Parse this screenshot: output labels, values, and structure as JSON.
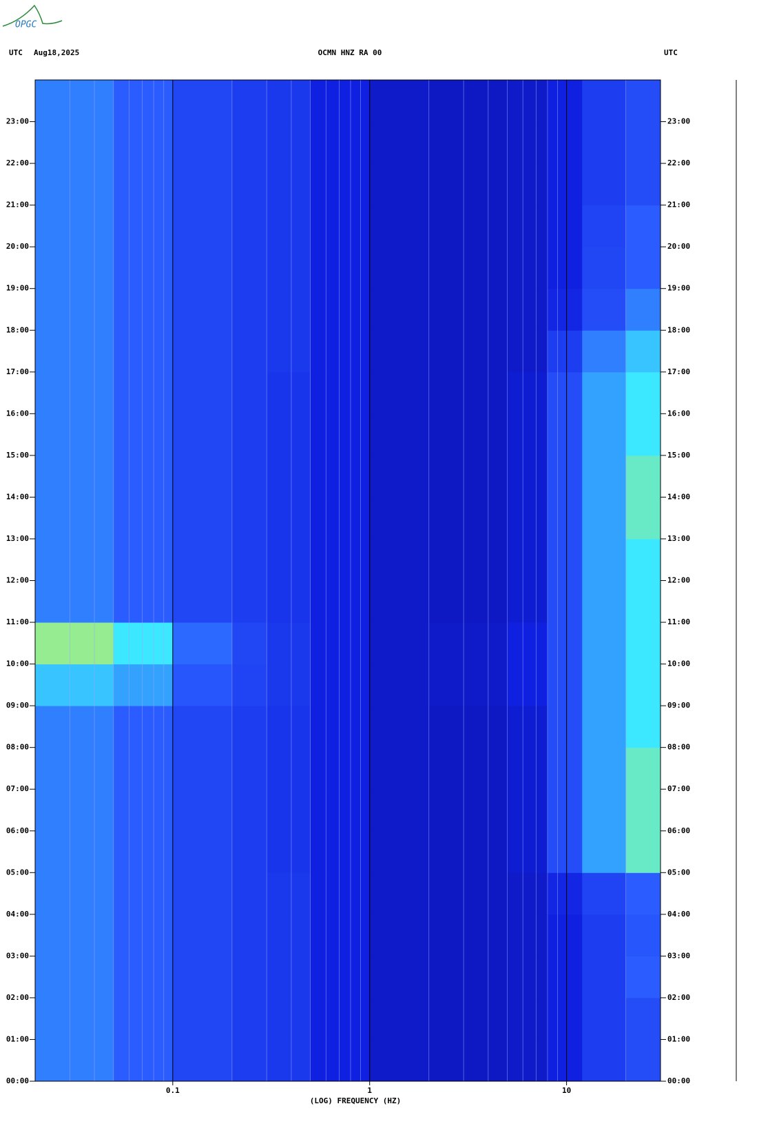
{
  "chart_data": {
    "type": "spectrogram",
    "logo": "OPGC",
    "title": "OCMN HNZ RA 00",
    "left_label": "UTC",
    "date": "Aug18,2025",
    "right_label": "UTC",
    "xlabel": "(LOG) FREQUENCY (HZ)",
    "xscale": "log",
    "xlim": [
      0.02,
      30
    ],
    "xticks": [
      0.1,
      1,
      10
    ],
    "ylim": [
      0,
      24
    ],
    "yticks": [
      {
        "value": 0,
        "label": "00:00"
      },
      {
        "value": 1,
        "label": "01:00"
      },
      {
        "value": 2,
        "label": "02:00"
      },
      {
        "value": 3,
        "label": "03:00"
      },
      {
        "value": 4,
        "label": "04:00"
      },
      {
        "value": 5,
        "label": "05:00"
      },
      {
        "value": 6,
        "label": "06:00"
      },
      {
        "value": 7,
        "label": "07:00"
      },
      {
        "value": 8,
        "label": "08:00"
      },
      {
        "value": 9,
        "label": "09:00"
      },
      {
        "value": 10,
        "label": "10:00"
      },
      {
        "value": 11,
        "label": "11:00"
      },
      {
        "value": 12,
        "label": "12:00"
      },
      {
        "value": 13,
        "label": "13:00"
      },
      {
        "value": 14,
        "label": "14:00"
      },
      {
        "value": 15,
        "label": "15:00"
      },
      {
        "value": 16,
        "label": "16:00"
      },
      {
        "value": 17,
        "label": "17:00"
      },
      {
        "value": 18,
        "label": "18:00"
      },
      {
        "value": 19,
        "label": "19:00"
      },
      {
        "value": 20,
        "label": "20:00"
      },
      {
        "value": 21,
        "label": "21:00"
      },
      {
        "value": 22,
        "label": "22:00"
      },
      {
        "value": 23,
        "label": "23:00"
      }
    ],
    "freq_bins": [
      0.02,
      0.05,
      0.1,
      0.2,
      0.3,
      0.5,
      1,
      2,
      5,
      8,
      12,
      20,
      30
    ],
    "y_bins": [
      0,
      1,
      2,
      3,
      4,
      5,
      6,
      7,
      8,
      9,
      10,
      11,
      12,
      13,
      14,
      15,
      16,
      17,
      18,
      19,
      20,
      21,
      22,
      23,
      24
    ],
    "zlim": [
      0,
      1
    ],
    "colorscale": [
      "#0a0a80",
      "#1020e0",
      "#2a5cff",
      "#3ce8ff",
      "#f0f020",
      "#c01010"
    ],
    "z": [
      [
        0.45,
        0.4,
        0.33,
        0.3,
        0.28,
        0.2,
        0.15,
        0.14,
        0.15,
        0.2,
        0.3,
        0.35
      ],
      [
        0.45,
        0.4,
        0.33,
        0.3,
        0.28,
        0.2,
        0.15,
        0.14,
        0.15,
        0.2,
        0.3,
        0.35
      ],
      [
        0.45,
        0.4,
        0.33,
        0.3,
        0.28,
        0.2,
        0.15,
        0.14,
        0.15,
        0.2,
        0.3,
        0.4
      ],
      [
        0.45,
        0.4,
        0.33,
        0.3,
        0.28,
        0.2,
        0.15,
        0.14,
        0.15,
        0.2,
        0.3,
        0.38
      ],
      [
        0.45,
        0.4,
        0.33,
        0.3,
        0.28,
        0.2,
        0.15,
        0.14,
        0.15,
        0.22,
        0.32,
        0.4
      ],
      [
        0.45,
        0.4,
        0.33,
        0.3,
        0.27,
        0.2,
        0.15,
        0.14,
        0.17,
        0.35,
        0.5,
        0.65
      ],
      [
        0.45,
        0.4,
        0.33,
        0.3,
        0.27,
        0.2,
        0.15,
        0.14,
        0.17,
        0.35,
        0.5,
        0.65
      ],
      [
        0.45,
        0.4,
        0.33,
        0.3,
        0.27,
        0.2,
        0.15,
        0.14,
        0.17,
        0.35,
        0.5,
        0.65
      ],
      [
        0.45,
        0.4,
        0.33,
        0.3,
        0.27,
        0.2,
        0.15,
        0.14,
        0.17,
        0.35,
        0.5,
        0.6
      ],
      [
        0.55,
        0.5,
        0.38,
        0.32,
        0.28,
        0.2,
        0.15,
        0.15,
        0.2,
        0.35,
        0.5,
        0.6
      ],
      [
        0.7,
        0.6,
        0.42,
        0.33,
        0.28,
        0.2,
        0.15,
        0.15,
        0.2,
        0.35,
        0.5,
        0.6
      ],
      [
        0.45,
        0.4,
        0.33,
        0.3,
        0.27,
        0.2,
        0.15,
        0.14,
        0.17,
        0.35,
        0.5,
        0.6
      ],
      [
        0.45,
        0.4,
        0.33,
        0.3,
        0.27,
        0.2,
        0.15,
        0.14,
        0.17,
        0.35,
        0.5,
        0.6
      ],
      [
        0.45,
        0.4,
        0.33,
        0.3,
        0.27,
        0.2,
        0.15,
        0.14,
        0.17,
        0.35,
        0.5,
        0.65
      ],
      [
        0.45,
        0.4,
        0.33,
        0.3,
        0.27,
        0.2,
        0.15,
        0.14,
        0.17,
        0.35,
        0.5,
        0.65
      ],
      [
        0.45,
        0.4,
        0.33,
        0.3,
        0.27,
        0.2,
        0.15,
        0.14,
        0.17,
        0.35,
        0.5,
        0.6
      ],
      [
        0.45,
        0.4,
        0.33,
        0.3,
        0.27,
        0.2,
        0.15,
        0.14,
        0.17,
        0.35,
        0.5,
        0.6
      ],
      [
        0.45,
        0.4,
        0.33,
        0.3,
        0.28,
        0.2,
        0.15,
        0.14,
        0.15,
        0.3,
        0.45,
        0.55
      ],
      [
        0.45,
        0.4,
        0.33,
        0.3,
        0.28,
        0.2,
        0.15,
        0.14,
        0.15,
        0.22,
        0.35,
        0.45
      ],
      [
        0.45,
        0.4,
        0.33,
        0.3,
        0.28,
        0.2,
        0.15,
        0.14,
        0.15,
        0.2,
        0.33,
        0.4
      ],
      [
        0.45,
        0.4,
        0.33,
        0.3,
        0.28,
        0.2,
        0.15,
        0.14,
        0.15,
        0.2,
        0.32,
        0.4
      ],
      [
        0.45,
        0.4,
        0.33,
        0.3,
        0.28,
        0.2,
        0.15,
        0.14,
        0.15,
        0.2,
        0.3,
        0.35
      ],
      [
        0.45,
        0.4,
        0.33,
        0.3,
        0.28,
        0.2,
        0.15,
        0.14,
        0.15,
        0.2,
        0.3,
        0.35
      ],
      [
        0.45,
        0.4,
        0.33,
        0.3,
        0.28,
        0.2,
        0.15,
        0.14,
        0.15,
        0.2,
        0.3,
        0.35
      ]
    ]
  }
}
